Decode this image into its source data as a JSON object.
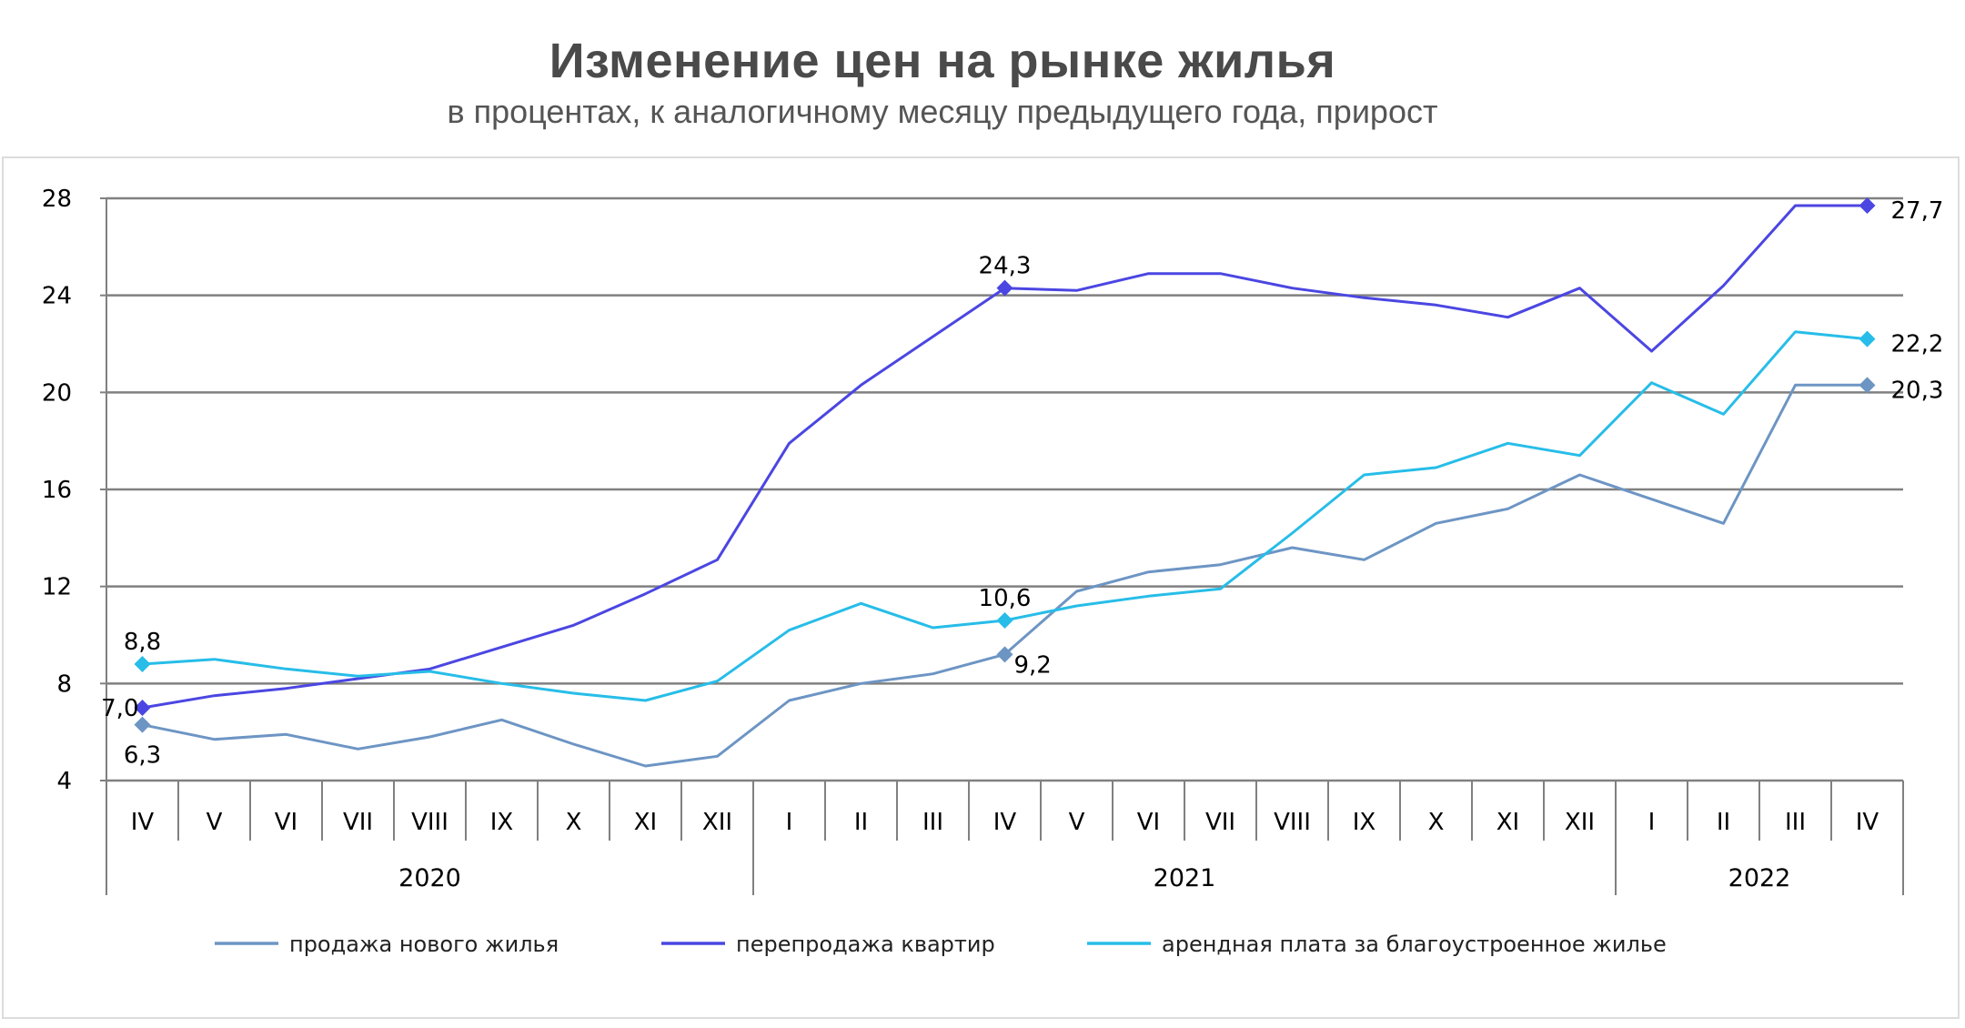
{
  "chart_data": {
    "type": "line",
    "title": "Изменение цен на рынке жилья",
    "subtitle": "в процентах, к аналогичному месяцу предыдущего года, прирост",
    "categories": [
      "IV",
      "V",
      "VI",
      "VII",
      "VIII",
      "IX",
      "X",
      "XI",
      "XII",
      "I",
      "II",
      "III",
      "IV",
      "V",
      "VI",
      "VII",
      "VIII",
      "IX",
      "X",
      "XI",
      "XII",
      "I",
      "II",
      "III",
      "IV"
    ],
    "year_groups": [
      {
        "label": "2020",
        "start": 0,
        "end": 8
      },
      {
        "label": "2021",
        "start": 9,
        "end": 20
      },
      {
        "label": "2022",
        "start": 21,
        "end": 24
      }
    ],
    "ylim": [
      4,
      28
    ],
    "yticks": [
      4,
      8,
      12,
      16,
      20,
      24,
      28
    ],
    "grid": true,
    "legend_position": "bottom",
    "series": [
      {
        "name": "продажа нового жилья",
        "color": "#6d95c4",
        "values": [
          6.3,
          5.7,
          5.9,
          5.3,
          5.8,
          6.5,
          5.5,
          4.6,
          5.0,
          7.3,
          8.0,
          8.4,
          9.2,
          11.8,
          12.6,
          12.9,
          13.6,
          13.1,
          14.6,
          15.2,
          16.6,
          15.6,
          14.6,
          20.3,
          20.3
        ],
        "labels": [
          {
            "index": 0,
            "text": "6,3",
            "pos": "below"
          },
          {
            "index": 12,
            "text": "9,2",
            "pos": "below-right"
          },
          {
            "index": 24,
            "text": "20,3",
            "pos": "right"
          }
        ]
      },
      {
        "name": "перепродажа квартир",
        "color": "#4b46e2",
        "values": [
          7.0,
          7.5,
          7.8,
          8.2,
          8.6,
          9.5,
          10.4,
          11.7,
          13.1,
          17.9,
          20.3,
          22.3,
          24.3,
          24.2,
          24.9,
          24.9,
          24.3,
          23.9,
          23.6,
          23.1,
          24.3,
          21.7,
          24.4,
          27.7,
          27.7
        ],
        "labels": [
          {
            "index": 0,
            "text": "7,0",
            "pos": "left"
          },
          {
            "index": 12,
            "text": "24,3",
            "pos": "above"
          },
          {
            "index": 24,
            "text": "27,7",
            "pos": "right"
          }
        ]
      },
      {
        "name": "арендная плата за благоустроенное жилье",
        "color": "#27bde8",
        "values": [
          8.8,
          9.0,
          8.6,
          8.3,
          8.5,
          8.0,
          7.6,
          7.3,
          8.1,
          10.2,
          11.3,
          10.3,
          10.6,
          11.2,
          11.6,
          11.9,
          14.2,
          16.6,
          16.9,
          17.9,
          17.4,
          20.4,
          19.1,
          22.5,
          22.2
        ],
        "labels": [
          {
            "index": 0,
            "text": "8,8",
            "pos": "above"
          },
          {
            "index": 12,
            "text": "10,6",
            "pos": "above"
          },
          {
            "index": 24,
            "text": "22,2",
            "pos": "right"
          }
        ]
      }
    ]
  }
}
